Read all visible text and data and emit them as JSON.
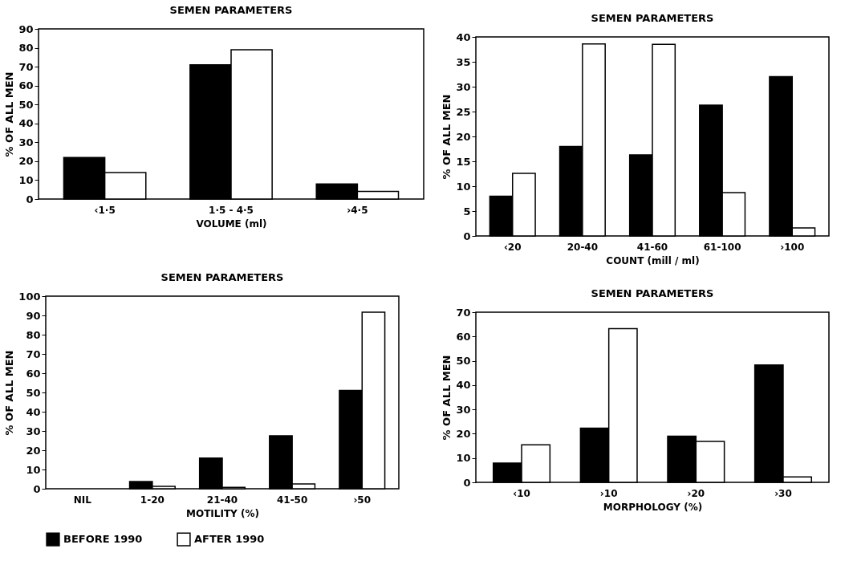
{
  "chart_data": [
    {
      "type": "bar",
      "title": "SEMEN PARAMETERS",
      "xlabel": "VOLUME (ml)",
      "ylabel": "% OF ALL MEN",
      "categories": [
        "‹1·5",
        "1·5 - 4·5",
        "›4·5"
      ],
      "series": [
        {
          "color": "#000000",
          "values": [
            22,
            71,
            8
          ]
        },
        {
          "color": "#ffffff",
          "values": [
            14,
            79,
            4
          ]
        }
      ],
      "ylim": [
        0,
        90
      ],
      "yticks": [
        0,
        10,
        20,
        30,
        40,
        50,
        60,
        70,
        80,
        90
      ],
      "grid": false
    },
    {
      "type": "bar",
      "title": "SEMEN PARAMETERS",
      "xlabel": "COUNT (mill / ml)",
      "ylabel": "% OF ALL MEN",
      "categories": [
        "‹20",
        "20-40",
        "41-60",
        "61-100",
        "›100"
      ],
      "series": [
        {
          "color": "#000000",
          "values": [
            8,
            18,
            16.3,
            26.3,
            32
          ]
        },
        {
          "color": "#ffffff",
          "values": [
            12.6,
            38.6,
            38.5,
            8.7,
            1.6
          ]
        }
      ],
      "ylim": [
        0,
        40
      ],
      "yticks": [
        0,
        5,
        10,
        15,
        20,
        25,
        30,
        35,
        40
      ],
      "grid": false
    },
    {
      "type": "bar",
      "title": "SEMEN PARAMETERS",
      "xlabel": "MOTILITY (%)",
      "ylabel": "% OF ALL MEN",
      "categories": [
        "NIL",
        "1-20",
        "21-40",
        "41-50",
        "›50"
      ],
      "series": [
        {
          "name": "BEFORE 1990",
          "color": "#000000",
          "values": [
            null,
            3.7,
            15.9,
            27.5,
            51
          ]
        },
        {
          "name": "AFTER 1990",
          "color": "#ffffff",
          "values": [
            null,
            1.3,
            0.7,
            2.5,
            91.7
          ]
        }
      ],
      "ylim": [
        0,
        100
      ],
      "yticks": [
        0,
        10,
        20,
        30,
        40,
        50,
        60,
        70,
        80,
        90,
        100
      ],
      "grid": false,
      "legend": "bottom"
    },
    {
      "type": "bar",
      "title": "SEMEN PARAMETERS",
      "xlabel": "MORPHOLOGY (%)",
      "ylabel": "% OF ALL MEN",
      "categories": [
        "‹10",
        "›10",
        "›20",
        "›30"
      ],
      "series": [
        {
          "color": "#000000",
          "values": [
            7.9,
            22.3,
            19,
            48.3
          ]
        },
        {
          "color": "#ffffff",
          "values": [
            15.4,
            63.2,
            16.8,
            2.2
          ]
        }
      ],
      "ylim": [
        0,
        70
      ],
      "yticks": [
        0,
        10,
        20,
        30,
        40,
        50,
        60,
        70
      ],
      "grid": false
    }
  ]
}
